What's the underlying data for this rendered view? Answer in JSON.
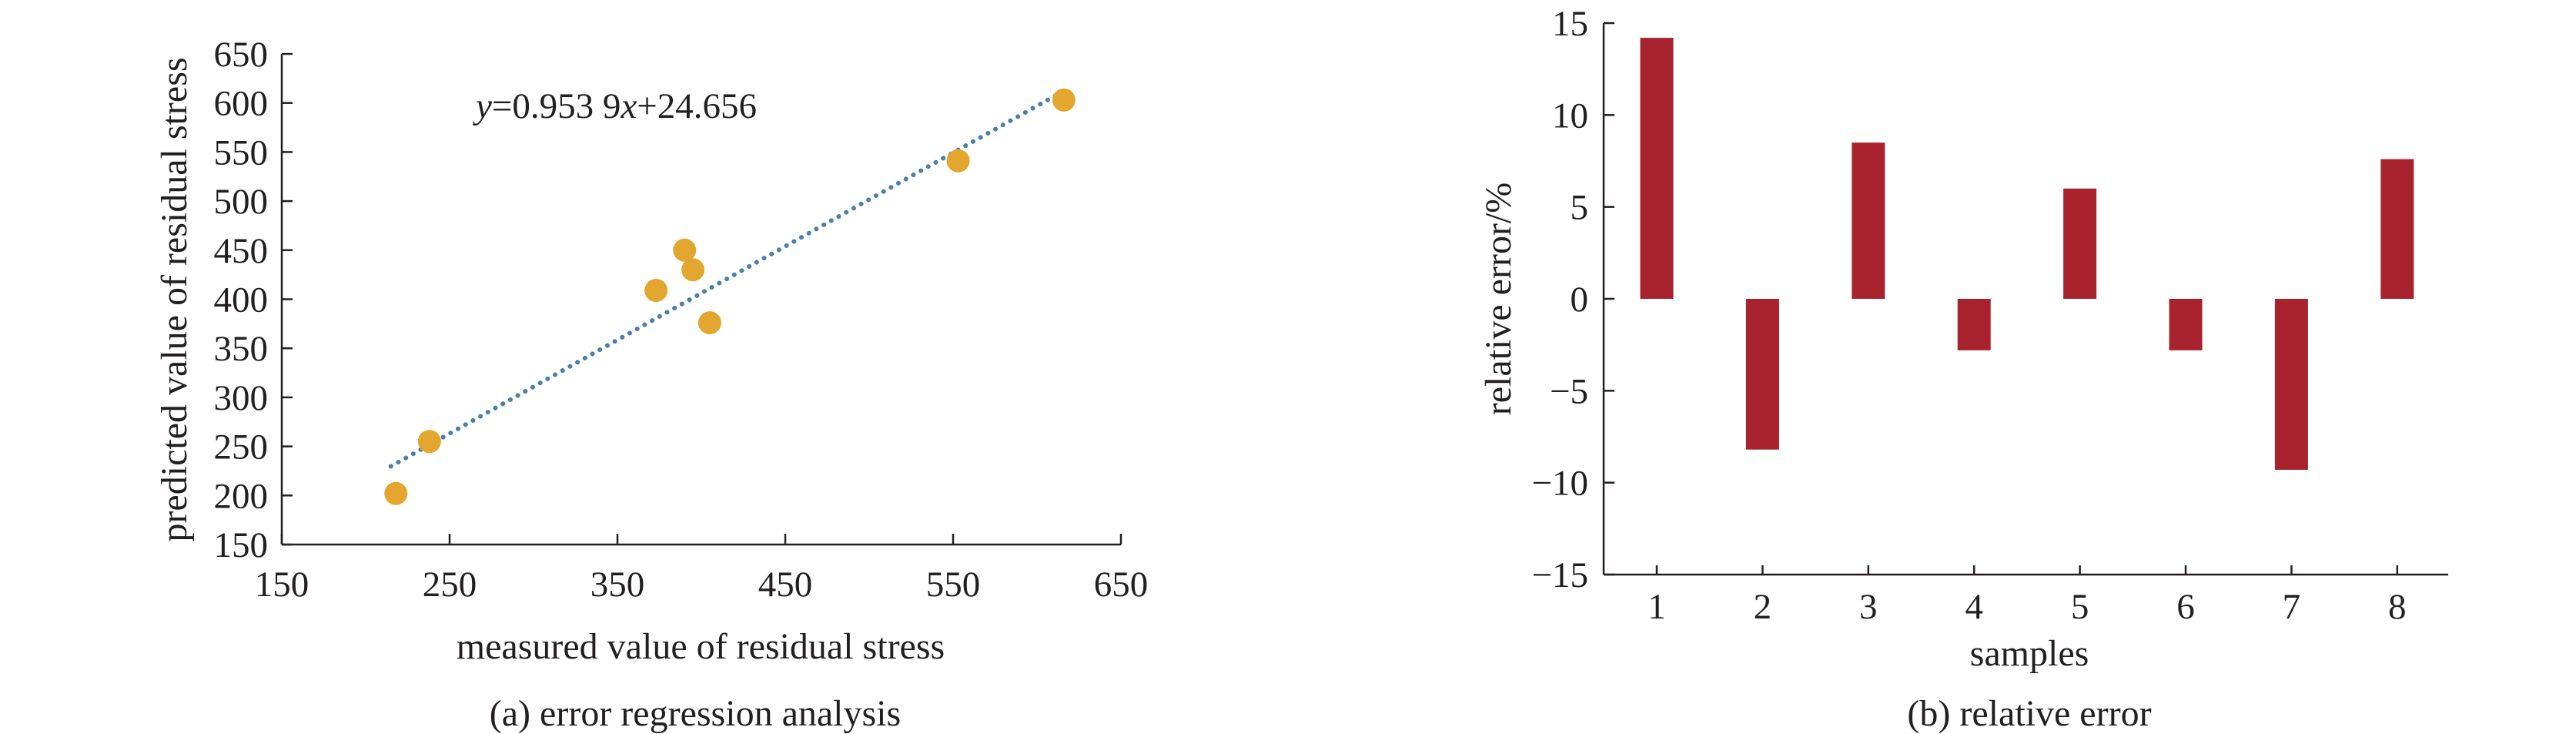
{
  "panel_a": {
    "caption": "(a) error regression analysis",
    "equation": {
      "y": "y",
      "eq1": "=0.953 9",
      "x": "x",
      "eq2": "+24.656"
    }
  },
  "panel_b": {
    "caption": "(b) relative error"
  },
  "colors": {
    "points": "#e3a72f",
    "trend": "#4a7fa8",
    "bars": "#a8232e",
    "axis": "#231f20"
  },
  "chart_data": [
    {
      "type": "scatter",
      "title": "",
      "xlabel": "measured value of residual stress",
      "ylabel": "predicted value of residual stress",
      "xlim": [
        150,
        650
      ],
      "ylim": [
        150,
        650
      ],
      "xticks": [
        150,
        250,
        350,
        450,
        550,
        650
      ],
      "yticks": [
        150,
        200,
        250,
        300,
        350,
        400,
        450,
        500,
        550,
        600,
        650
      ],
      "points": [
        {
          "x": 218,
          "y": 202
        },
        {
          "x": 238,
          "y": 255
        },
        {
          "x": 373,
          "y": 409
        },
        {
          "x": 390,
          "y": 450
        },
        {
          "x": 395,
          "y": 430
        },
        {
          "x": 405,
          "y": 376
        },
        {
          "x": 553,
          "y": 541
        },
        {
          "x": 616,
          "y": 603
        }
      ],
      "trendline": {
        "slope": 0.9539,
        "intercept": 24.656,
        "x_range": [
          215,
          616
        ],
        "style": "dotted"
      },
      "grid": false
    },
    {
      "type": "bar",
      "title": "",
      "xlabel": "samples",
      "ylabel": "relative error/%",
      "categories": [
        "1",
        "2",
        "3",
        "4",
        "5",
        "6",
        "7",
        "8"
      ],
      "values": [
        14.2,
        -8.2,
        8.5,
        -2.8,
        6.0,
        -2.8,
        -9.3,
        7.6
      ],
      "ylim": [
        -15,
        15
      ],
      "yticks": [
        -15,
        -10,
        -5,
        0,
        5,
        10,
        15
      ],
      "ytick_labels": [
        "−15",
        "−10",
        "−5",
        "0",
        "5",
        "10",
        "15"
      ],
      "grid": false
    }
  ]
}
